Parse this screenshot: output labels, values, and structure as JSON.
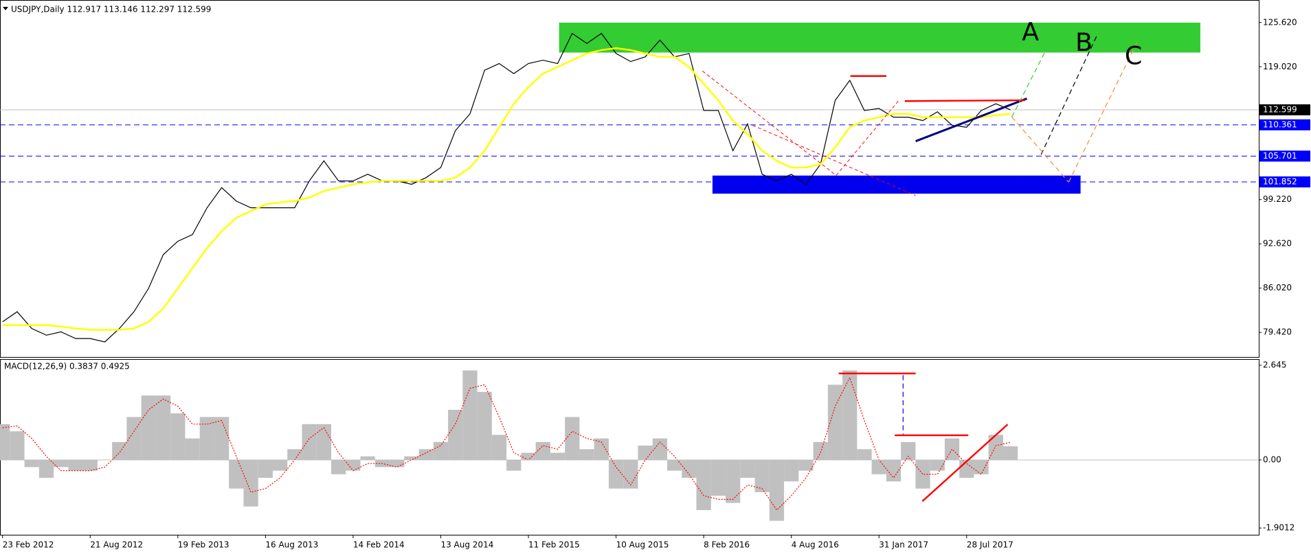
{
  "chart_data": [
    {
      "type": "line",
      "title": "USDJPY,Daily  112.917 113.146 112.297 112.599",
      "x": [
        0,
        1,
        2,
        3,
        4,
        5,
        6,
        7,
        8,
        9,
        10,
        11,
        12,
        13,
        14,
        15,
        16,
        17,
        18,
        19,
        20,
        21,
        22,
        23,
        24,
        25,
        26,
        27,
        28,
        29,
        30,
        31,
        32,
        33,
        34,
        35,
        36,
        37,
        38,
        39,
        40,
        41,
        42,
        43,
        44,
        45,
        46,
        47,
        48,
        49,
        50,
        51,
        52,
        53,
        54,
        55,
        56,
        57,
        58,
        59,
        60,
        61,
        62,
        63,
        64,
        65,
        66,
        67,
        68,
        69
      ],
      "series": [
        {
          "color": "#000000",
          "values": [
            81,
            82.5,
            80,
            79,
            79.5,
            78.5,
            78.5,
            78,
            80,
            82.5,
            86,
            91,
            93,
            94,
            98,
            101,
            99,
            98,
            98,
            98,
            98,
            102,
            105,
            102,
            102,
            103,
            102,
            102,
            101.5,
            102.5,
            104,
            109.5,
            112,
            118.5,
            119.5,
            118,
            119.5,
            120,
            119.5,
            124,
            122.5,
            124,
            121,
            119.8,
            120.5,
            123,
            120.5,
            121,
            112.5,
            112.5,
            106.5,
            110.5,
            103,
            102,
            103,
            101.5,
            104.5,
            114,
            117,
            112.5,
            112.8,
            111.5,
            111.5,
            111,
            112.3,
            110.3,
            110,
            112.5,
            113.5,
            112.6
          ]
        },
        {
          "color": "#ffff00",
          "values": [
            80.5,
            80.5,
            80.5,
            80.5,
            80.3,
            80,
            79.8,
            79.8,
            79.8,
            80,
            81,
            83,
            86,
            89,
            92,
            94.5,
            96.5,
            97.5,
            98.5,
            98.8,
            99,
            99.5,
            100.5,
            101,
            101.5,
            101.8,
            102,
            102,
            102,
            102,
            102,
            102.5,
            104,
            106.5,
            110,
            113.5,
            116,
            118,
            119,
            120,
            121,
            121.5,
            121.8,
            121.5,
            121,
            120.5,
            120.5,
            119,
            116.5,
            114,
            111,
            109,
            106.5,
            105,
            104,
            104,
            104.5,
            107,
            110,
            111,
            111.5,
            112,
            112,
            111.5,
            111.5,
            111.5,
            111.5,
            111.5,
            111.8,
            112
          ]
        }
      ],
      "xlim": [
        0,
        86
      ],
      "ylim": [
        76.06,
        128.36
      ],
      "yticks": [
        {
          "value": 125.62,
          "label": "125.620"
        },
        {
          "value": 119.02,
          "label": "119.020"
        },
        {
          "value": 99.22,
          "label": "99.220"
        },
        {
          "value": 92.62,
          "label": "92.620"
        },
        {
          "value": 86.02,
          "label": "86.020"
        },
        {
          "value": 79.42,
          "label": "79.420"
        }
      ],
      "levels": [
        {
          "value": 110.361,
          "label": "110.361"
        },
        {
          "value": 105.701,
          "label": "105.701"
        },
        {
          "value": 101.852,
          "label": "101.852"
        }
      ],
      "level_color": "#0000ff",
      "last_price": {
        "value": 112.599,
        "label": "112.599"
      },
      "zones": [
        {
          "x": [
            38.1,
            82
          ],
          "y": [
            121.14,
            125.6
          ],
          "color": "#33cc33"
        },
        {
          "x": [
            48.6,
            73.8
          ],
          "y": [
            100.1,
            102.8
          ],
          "color": "#0000ee"
        }
      ],
      "annotations": [
        "A",
        "B",
        "C"
      ]
    },
    {
      "type": "bar",
      "title": "MACD(12,26,9) 0.3837 0.4925",
      "x": [
        0,
        1,
        2,
        3,
        4,
        5,
        6,
        7,
        8,
        9,
        10,
        11,
        12,
        13,
        14,
        15,
        16,
        17,
        18,
        19,
        20,
        21,
        22,
        23,
        24,
        25,
        26,
        27,
        28,
        29,
        30,
        31,
        32,
        33,
        34,
        35,
        36,
        37,
        38,
        39,
        40,
        41,
        42,
        43,
        44,
        45,
        46,
        47,
        48,
        49,
        50,
        51,
        52,
        53,
        54,
        55,
        56,
        57,
        58,
        59,
        60,
        61,
        62,
        63,
        64,
        65,
        66,
        67,
        68,
        69
      ],
      "series": [
        {
          "color": "#c0c0c0",
          "values": [
            1.0,
            0.8,
            -0.2,
            -0.5,
            -0.2,
            -0.3,
            -0.3,
            0,
            0.5,
            1.2,
            1.8,
            1.8,
            1.3,
            0.6,
            1.2,
            1.2,
            -0.8,
            -1.3,
            -0.5,
            -0.3,
            0.3,
            1.0,
            1.0,
            -0.4,
            -0.3,
            0.1,
            -0.2,
            -0.2,
            0.1,
            0.3,
            0.5,
            1.4,
            2.5,
            1.9,
            0.7,
            -0.3,
            0.2,
            0.5,
            0.2,
            1.2,
            0.3,
            0.6,
            -0.8,
            -0.8,
            0.4,
            0.6,
            -0.3,
            -0.5,
            -1.4,
            -1.0,
            -1.2,
            -0.5,
            -0.9,
            -1.7,
            -0.6,
            -0.3,
            0.5,
            2.1,
            2.5,
            0.3,
            -0.4,
            -0.6,
            0.5,
            -0.8,
            -0.3,
            0.6,
            -0.5,
            -0.4,
            0.7,
            0.38
          ]
        },
        {
          "color": "#ff0000",
          "values": [
            0.9,
            0.95,
            0.6,
            0.1,
            -0.3,
            -0.3,
            -0.3,
            -0.2,
            0.2,
            0.8,
            1.4,
            1.7,
            1.5,
            1.0,
            1.0,
            1.1,
            0.1,
            -0.9,
            -0.8,
            -0.5,
            0,
            0.6,
            0.9,
            0.2,
            -0.3,
            -0.1,
            -0.1,
            -0.2,
            0,
            0.2,
            0.4,
            1.0,
            2.0,
            2.1,
            1.2,
            0.2,
            0,
            0.4,
            0.3,
            0.8,
            0.6,
            0.5,
            -0.2,
            -0.7,
            0,
            0.5,
            0.1,
            -0.4,
            -1.0,
            -1.1,
            -1.1,
            -0.7,
            -0.8,
            -1.4,
            -1.0,
            -0.5,
            0.2,
            1.5,
            2.3,
            1.1,
            0,
            -0.5,
            0.1,
            -0.4,
            -0.4,
            0.3,
            -0.1,
            -0.4,
            0.4,
            0.49
          ]
        }
      ],
      "xlim": [
        0,
        86
      ],
      "ylim": [
        -2.09,
        2.76
      ],
      "yticks": [
        {
          "value": 2.645,
          "label": "2.645"
        },
        {
          "value": 0,
          "label": "0.00"
        },
        {
          "value": -1.9012,
          "label": "-1.9012"
        }
      ],
      "xticks": [
        {
          "value": 0,
          "label": "23 Feb 2012"
        },
        {
          "value": 6,
          "label": "21 Aug 2012"
        },
        {
          "value": 12,
          "label": "19 Feb 2013"
        },
        {
          "value": 18,
          "label": "16 Aug 2013"
        },
        {
          "value": 24,
          "label": "14 Feb 2014"
        },
        {
          "value": 30,
          "label": "13 Aug 2014"
        },
        {
          "value": 36,
          "label": "11 Feb 2015"
        },
        {
          "value": 42,
          "label": "10 Aug 2015"
        },
        {
          "value": 48,
          "label": "8 Feb 2016"
        },
        {
          "value": 54,
          "label": "4 Aug 2016"
        },
        {
          "value": 60,
          "label": "31 Jan 2017"
        },
        {
          "value": 66,
          "label": "28 Jul 2017"
        }
      ]
    }
  ]
}
